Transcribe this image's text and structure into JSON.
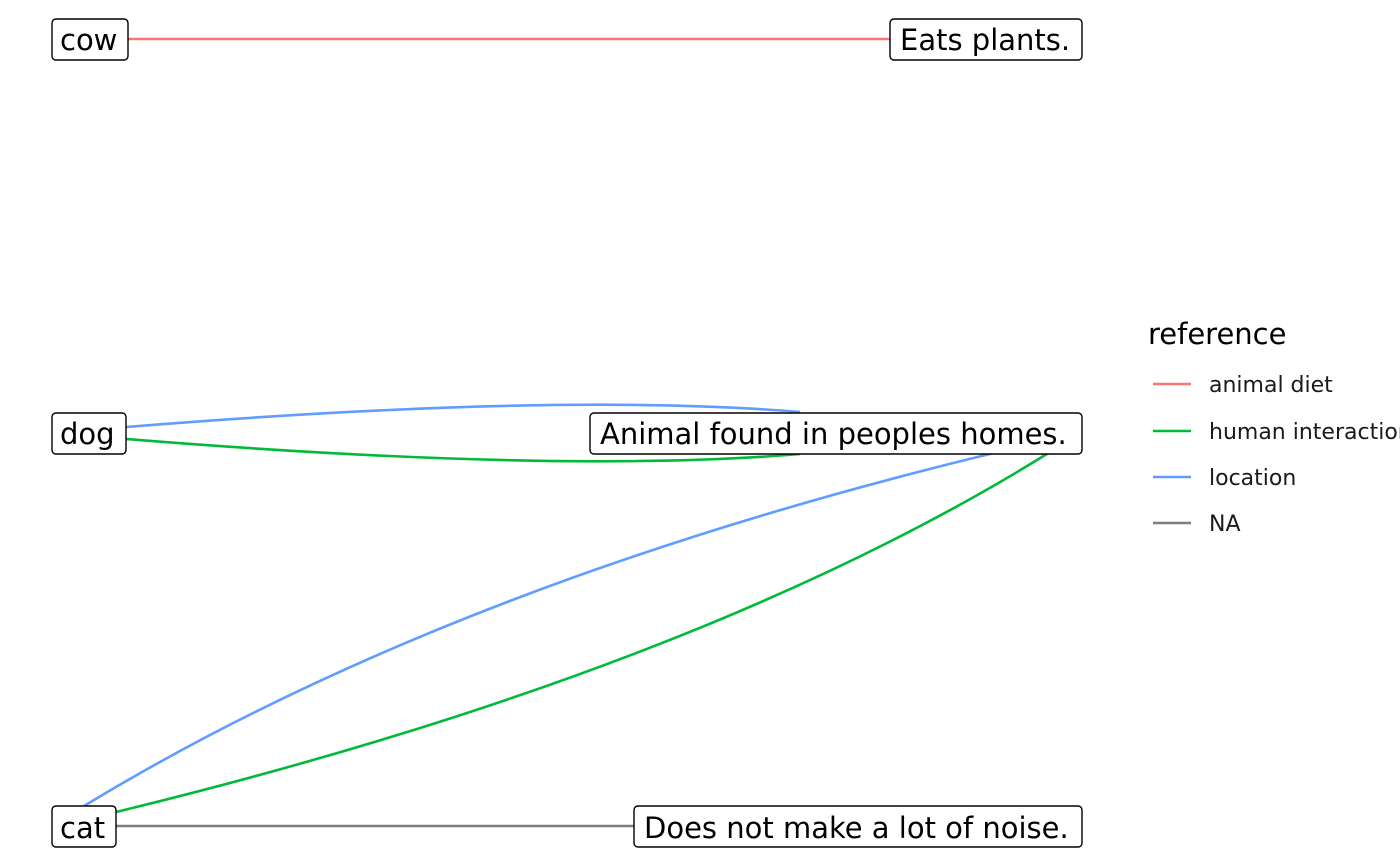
{
  "nodes": {
    "cow": "cow",
    "dog": "dog",
    "cat": "cat",
    "eats_plants": "Eats plants.",
    "found_in_homes": "Animal found in peoples homes.",
    "not_noisy": "Does not make a lot of noise."
  },
  "edges": [
    {
      "from": "cow",
      "to": "eats_plants",
      "reference": "animal diet"
    },
    {
      "from": "dog",
      "to": "found_in_homes",
      "reference": "location"
    },
    {
      "from": "dog",
      "to": "found_in_homes",
      "reference": "human interaction"
    },
    {
      "from": "cat",
      "to": "found_in_homes",
      "reference": "location"
    },
    {
      "from": "cat",
      "to": "found_in_homes",
      "reference": "human interaction"
    },
    {
      "from": "cat",
      "to": "not_noisy",
      "reference": "NA"
    }
  ],
  "legend": {
    "title": "reference",
    "items": [
      {
        "label": "animal diet",
        "color": "#F8766D"
      },
      {
        "label": "human interaction",
        "color": "#00BA38"
      },
      {
        "label": "location",
        "color": "#619CFF"
      },
      {
        "label": "NA",
        "color": "#7F7F7F"
      }
    ]
  }
}
